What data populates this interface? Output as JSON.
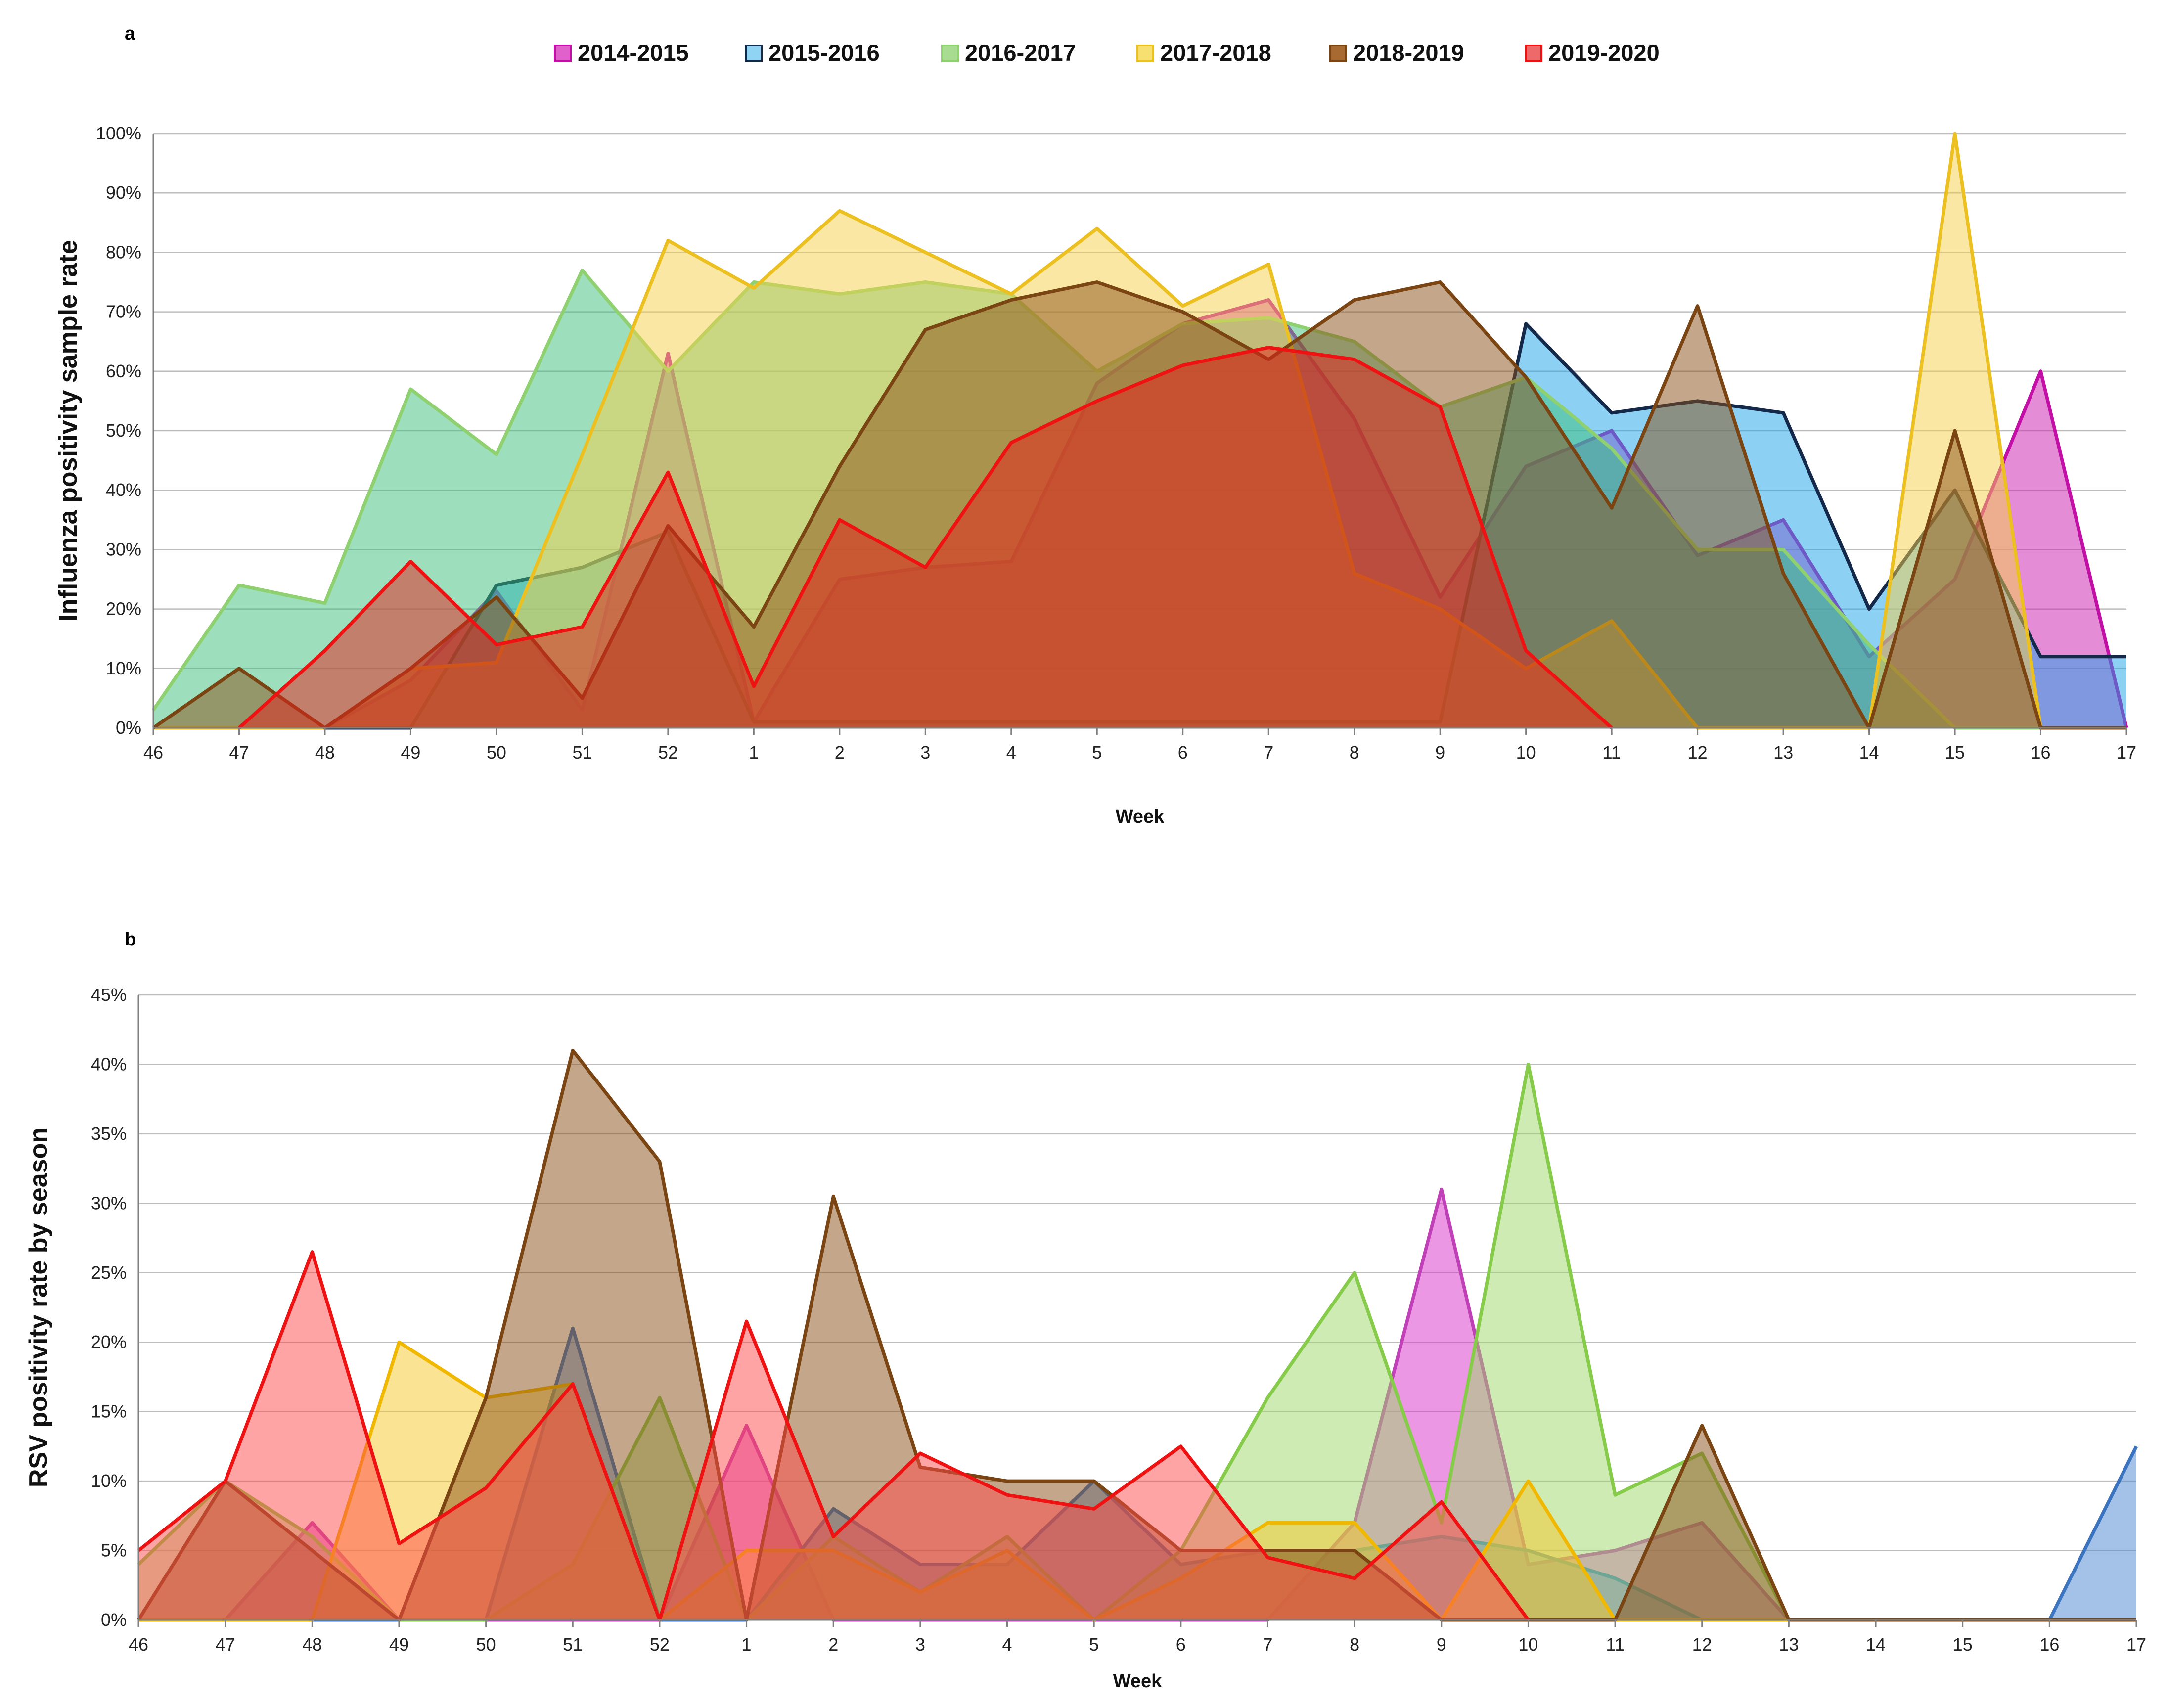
{
  "chart_data": [
    {
      "panel": "a",
      "type": "area",
      "title": "",
      "xlabel": "Week",
      "ylabel": "Influenza positivity sample rate",
      "ylim": [
        0,
        100
      ],
      "y_ticks": [
        "0%",
        "10%",
        "20%",
        "30%",
        "40%",
        "50%",
        "60%",
        "70%",
        "80%",
        "90%",
        "100%"
      ],
      "categories": [
        "46",
        "47",
        "48",
        "49",
        "50",
        "51",
        "52",
        "1",
        "2",
        "3",
        "4",
        "5",
        "6",
        "7",
        "8",
        "9",
        "10",
        "11",
        "12",
        "13",
        "14",
        "15",
        "16",
        "17"
      ],
      "grid": true,
      "legend_position": "top-center",
      "series": [
        {
          "name": "2014-2015",
          "fill": "#cc1aaf",
          "stroke": "#c210a6",
          "values": [
            0,
            0,
            0,
            8,
            23,
            3,
            63,
            1,
            25,
            27,
            28,
            58,
            68,
            72,
            52,
            22,
            44,
            50,
            29,
            35,
            12,
            25,
            60,
            0
          ]
        },
        {
          "name": "2015-2016",
          "fill": "#1aa4e8",
          "stroke": "#14284a",
          "values": [
            0,
            0,
            0,
            0,
            24,
            27,
            33,
            1,
            1,
            1,
            1,
            1,
            1,
            1,
            1,
            1,
            68,
            53,
            55,
            53,
            20,
            40,
            12,
            12
          ]
        },
        {
          "name": "2016-2017",
          "fill": "#3cc07c",
          "stroke": "#8fd070",
          "values": [
            3,
            24,
            21,
            57,
            46,
            77,
            60,
            75,
            73,
            75,
            73,
            60,
            68,
            69,
            65,
            54,
            59,
            47,
            30,
            30,
            14,
            0,
            0,
            0
          ]
        },
        {
          "name": "2017-2018",
          "fill": "#f5d04a",
          "stroke": "#ecc020",
          "values": [
            0,
            0,
            0,
            10,
            11,
            46,
            82,
            74,
            87,
            80,
            73,
            84,
            71,
            78,
            26,
            20,
            10,
            18,
            0,
            0,
            0,
            100,
            0,
            0
          ]
        },
        {
          "name": "2018-2019",
          "fill": "#8a4f18",
          "stroke": "#7a4512",
          "values": [
            0,
            10,
            0,
            10,
            22,
            5,
            34,
            17,
            44,
            67,
            72,
            75,
            70,
            62,
            72,
            75,
            59,
            37,
            71,
            26,
            0,
            50,
            0,
            0
          ]
        },
        {
          "name": "2019-2020",
          "fill": "#e8201a",
          "stroke": "#ee1212",
          "values": [
            null,
            0,
            13,
            28,
            14,
            17,
            43,
            7,
            35,
            27,
            48,
            55,
            61,
            64,
            62,
            54,
            13,
            0,
            null,
            null,
            null,
            null,
            null,
            null
          ]
        }
      ]
    },
    {
      "panel": "b",
      "type": "area",
      "title": "",
      "xlabel": "Week",
      "ylabel": "RSV positivity rate by season",
      "ylim": [
        0,
        45
      ],
      "y_ticks": [
        "0%",
        "5%",
        "10%",
        "15%",
        "20%",
        "25%",
        "30%",
        "35%",
        "40%",
        "45%"
      ],
      "categories": [
        "46",
        "47",
        "48",
        "49",
        "50",
        "51",
        "52",
        "1",
        "2",
        "3",
        "4",
        "5",
        "6",
        "7",
        "8",
        "9",
        "10",
        "11",
        "12",
        "13",
        "14",
        "15",
        "16",
        "17"
      ],
      "grid": true,
      "series": [
        {
          "name": "2014-2015",
          "fill": "#d830c8",
          "stroke": "#c040b8",
          "values": [
            0,
            0,
            7,
            0,
            0,
            0,
            0,
            14,
            0,
            0,
            0,
            0,
            0,
            0,
            7,
            31,
            4,
            5,
            7,
            0,
            0,
            0,
            0,
            0
          ]
        },
        {
          "name": "2015-2016",
          "fill": "#4a86d0",
          "stroke": "#3d74c0",
          "values": [
            0,
            0,
            0,
            0,
            0,
            21,
            0,
            0,
            8,
            4,
            4,
            10,
            4,
            5,
            5,
            6,
            5,
            3,
            0,
            0,
            0,
            0,
            0,
            12.5
          ]
        },
        {
          "name": "2016-2017",
          "fill": "#9fd86a",
          "stroke": "#86cc4a",
          "values": [
            4,
            10,
            6,
            0,
            0,
            4,
            16,
            0,
            6,
            2,
            6,
            0,
            5,
            16,
            25,
            7,
            40,
            9,
            12,
            0,
            0,
            0,
            0,
            0
          ]
        },
        {
          "name": "2017-2018",
          "fill": "#f5c828",
          "stroke": "#f0b800",
          "values": [
            0,
            0,
            0,
            20,
            16,
            17,
            0,
            5,
            5,
            2,
            5,
            0,
            3,
            7,
            7,
            0,
            10,
            0,
            0,
            0,
            0,
            0,
            0,
            0
          ]
        },
        {
          "name": "2018-2019",
          "fill": "#8a4f18",
          "stroke": "#7a4512",
          "values": [
            0,
            10,
            5,
            0,
            16,
            41,
            33,
            0,
            30.5,
            11,
            10,
            10,
            5,
            5,
            5,
            0,
            0,
            0,
            14,
            0,
            0,
            0,
            0,
            0
          ]
        },
        {
          "name": "2019-2020",
          "fill": "#ff4a4a",
          "stroke": "#ee1212",
          "values": [
            5,
            10,
            26.5,
            5.5,
            9.5,
            17,
            0,
            21.5,
            6,
            12,
            9,
            8,
            12.5,
            4.5,
            3,
            8.5,
            0,
            null,
            null,
            null,
            null,
            null,
            null,
            null
          ]
        }
      ]
    }
  ],
  "panels": {
    "a_label": "a",
    "b_label": "b"
  },
  "legend": [
    {
      "label": "2014-2015",
      "fill": "#e060cc",
      "stroke": "#c210a6"
    },
    {
      "label": "2015-2016",
      "fill": "#8fd4f2",
      "stroke": "#14284a"
    },
    {
      "label": "2016-2017",
      "fill": "#a8dc90",
      "stroke": "#8fd070"
    },
    {
      "label": "2017-2018",
      "fill": "#f8e070",
      "stroke": "#ecc020"
    },
    {
      "label": "2018-2019",
      "fill": "#a86a30",
      "stroke": "#7a4512"
    },
    {
      "label": "2019-2020",
      "fill": "#ee6a6a",
      "stroke": "#ee1212"
    }
  ]
}
